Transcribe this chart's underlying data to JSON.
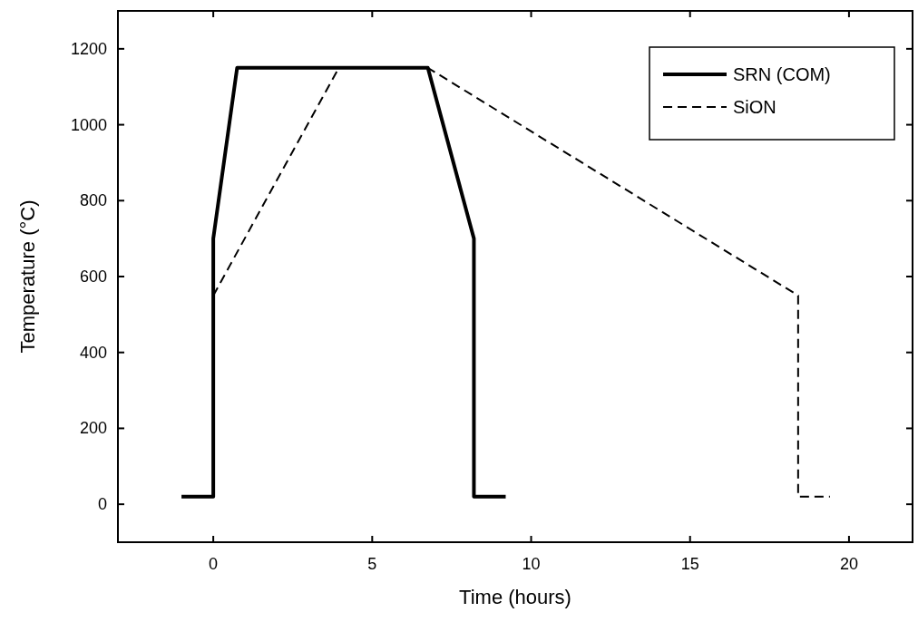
{
  "chart_data": {
    "type": "line",
    "xlabel": "Time (hours)",
    "ylabel": "Temperature (°C)",
    "xlim": [
      -3,
      22
    ],
    "xticks": [
      0,
      5,
      10,
      15,
      20
    ],
    "ylim": [
      -100,
      1300
    ],
    "yticks": [
      0,
      200,
      400,
      600,
      800,
      1000,
      1200
    ],
    "grid": false,
    "legend": "top right",
    "series": [
      {
        "name": "SRN (COM)",
        "color": "#000000",
        "line_style": "solid",
        "x": [
          -1,
          0,
          0,
          0.75,
          6.75,
          8.2,
          8.2,
          9.2
        ],
        "values": [
          20,
          20,
          700,
          1150,
          1150,
          700,
          20,
          20
        ]
      },
      {
        "name": "SiON",
        "color": "#000000",
        "line_style": "dashed",
        "x": [
          0,
          3.95,
          6.75,
          18.4,
          18.4,
          19.4
        ],
        "values": [
          550,
          1150,
          1150,
          550,
          20,
          20
        ]
      }
    ]
  }
}
